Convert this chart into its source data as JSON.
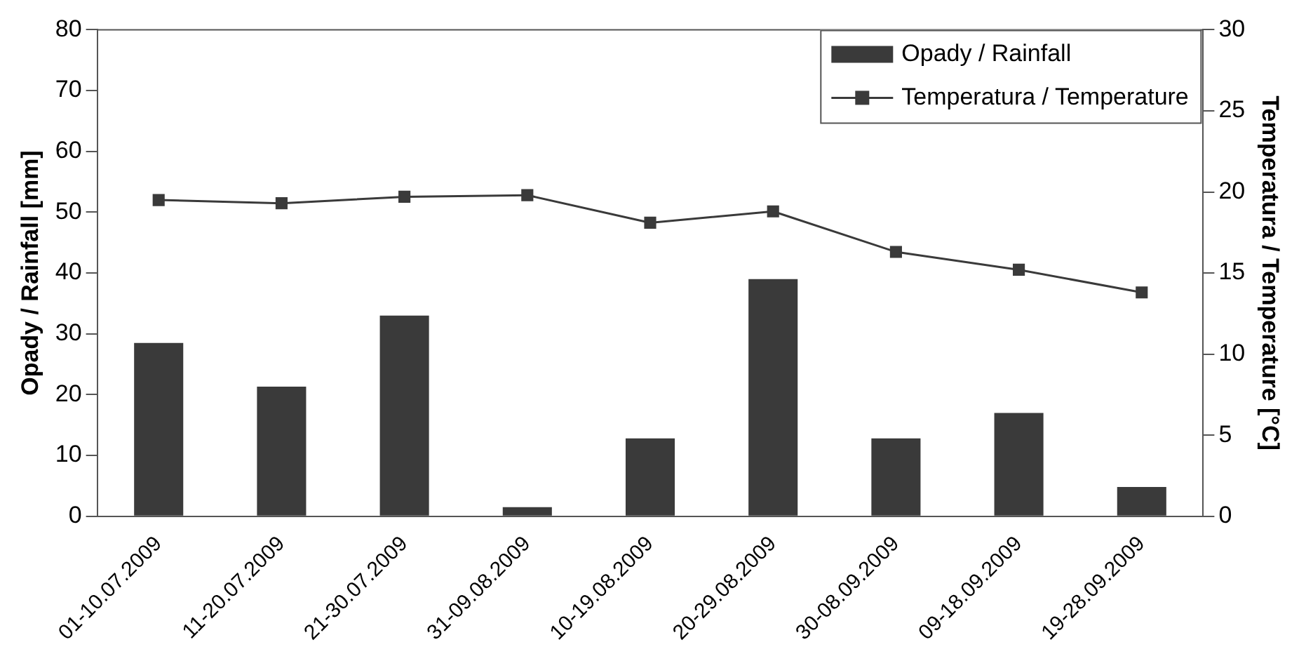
{
  "chart_data": {
    "type": "bar",
    "categories": [
      "01-10.07.2009",
      "11-20.07.2009",
      "21-30.07.2009",
      "31-09.08.2009",
      "10-19.08.2009",
      "20-29.08.2009",
      "30-08.09.2009",
      "09-18.09.2009",
      "19-28.09.2009"
    ],
    "series": [
      {
        "name": "Opady / Rainfall",
        "color": "#3a3a3a",
        "values": [
          28.5,
          21.3,
          33.0,
          1.5,
          12.8,
          39.0,
          12.8,
          17.0,
          4.8
        ]
      },
      {
        "name": "Temperatura / Temperature",
        "color": "#3a3a3a",
        "type": "line",
        "axis": "y2",
        "marker": "square",
        "values": [
          19.5,
          19.3,
          19.7,
          19.8,
          18.1,
          18.8,
          16.3,
          15.2,
          13.8
        ]
      }
    ],
    "ylabel": "Opady / Rainfall [mm]",
    "y2label": "Temperatura / Temperature [°C]",
    "ylim": [
      0,
      80
    ],
    "yticks": [
      0,
      10,
      20,
      30,
      40,
      50,
      60,
      70,
      80
    ],
    "y2lim": [
      0,
      30
    ],
    "y2ticks": [
      0,
      5,
      10,
      15,
      20,
      25,
      30
    ],
    "grid": false,
    "legend": "top right"
  }
}
